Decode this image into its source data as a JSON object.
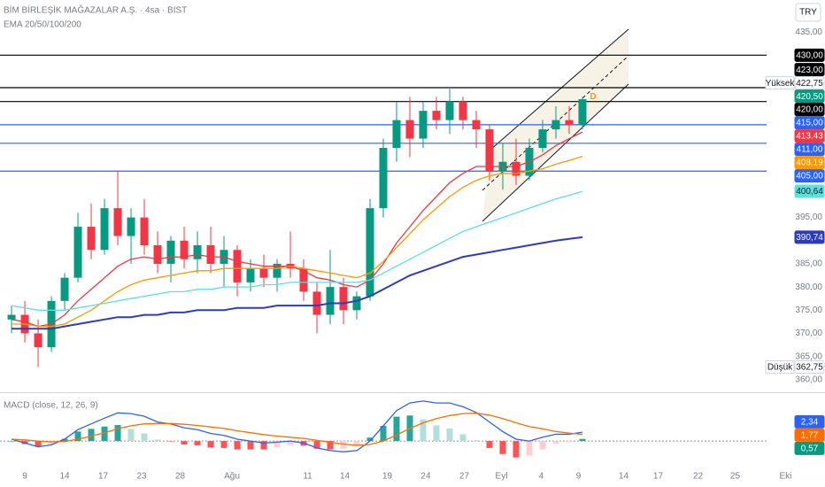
{
  "header": {
    "title": "BİM BİRLEŞİK MAĞAZALAR A.Ş. · 4sa · BIST",
    "indicators": "EMA 20/50/100/200",
    "currency": "TRY"
  },
  "chart_data": [
    {
      "type": "candlestick",
      "xlim": [
        -0.87,
        61.27
      ],
      "ylim": [
        357.3,
        441.9
      ],
      "yticks": [
        {
          "value": 435,
          "label": "435,00"
        },
        {
          "value": 395,
          "label": "395,00"
        },
        {
          "value": 385,
          "label": "385,00"
        },
        {
          "value": 380,
          "label": "380,00"
        },
        {
          "value": 375,
          "label": "375,00"
        },
        {
          "value": 370,
          "label": "370,00"
        },
        {
          "value": 365,
          "label": "365,00"
        },
        {
          "value": 360,
          "label": "360,00"
        }
      ],
      "open": [
        373,
        374,
        370,
        367,
        377,
        382,
        393,
        388,
        397,
        391,
        395,
        389,
        385,
        390,
        386,
        389,
        385,
        388,
        381,
        384,
        382,
        385,
        384,
        379,
        374,
        380,
        375,
        378,
        397,
        410,
        416,
        412,
        418,
        416,
        420,
        416,
        414,
        405,
        407,
        404,
        410,
        414,
        416,
        415
      ],
      "high": [
        376,
        377,
        373,
        378,
        383,
        396,
        398,
        399,
        405,
        397,
        399,
        392,
        391,
        393,
        392,
        393,
        391,
        389,
        386,
        387,
        386,
        392,
        386,
        381,
        388,
        382,
        379,
        399,
        412,
        420,
        421,
        420,
        421,
        422.75,
        421,
        418,
        415,
        411,
        412,
        412,
        416,
        419,
        419,
        421
      ],
      "low": [
        370,
        368,
        362.75,
        366,
        375,
        381,
        386,
        387,
        389,
        385,
        387,
        383,
        381,
        384,
        383,
        383,
        380,
        378,
        379,
        380,
        379,
        382,
        377,
        370,
        372,
        372,
        373,
        377,
        395,
        407,
        408,
        410,
        414,
        413,
        414,
        410,
        403,
        401,
        402,
        403,
        409,
        412,
        413,
        414
      ],
      "close": [
        374,
        370,
        367,
        377,
        382,
        393,
        388,
        397,
        391,
        395,
        389,
        385,
        390,
        386,
        389,
        385,
        388,
        381,
        384,
        382,
        385,
        384,
        379,
        374,
        380,
        375,
        378,
        397,
        410,
        416,
        412,
        418,
        416,
        420,
        416,
        414,
        405,
        407,
        404,
        410,
        414,
        416,
        415,
        420.5
      ],
      "up_color": "#089981",
      "down_color": "#f23645",
      "series": [
        {
          "color": "#f23645",
          "values": [
            373,
            372.5,
            371.5,
            372,
            374,
            377,
            379.5,
            382,
            384.5,
            386,
            386.5,
            386,
            386.5,
            386.5,
            387,
            386.5,
            386.5,
            385.5,
            385,
            384.5,
            384.5,
            384.5,
            383.5,
            382,
            381.5,
            380.5,
            380,
            381.5,
            385,
            389.5,
            393,
            396.5,
            399.5,
            402.5,
            404.5,
            406,
            406,
            406,
            406,
            407,
            408.5,
            410.5,
            412,
            413.43
          ]
        },
        {
          "color": "#ff9800",
          "values": [
            372,
            372,
            371.5,
            371.5,
            372,
            373.5,
            375,
            377,
            379,
            380.5,
            381.5,
            382,
            382.5,
            383,
            383.5,
            383.5,
            384,
            384,
            384,
            384,
            384,
            384.5,
            384,
            383.5,
            383,
            382.5,
            382,
            383,
            385.5,
            388.5,
            391.5,
            394.5,
            397,
            399.5,
            401.5,
            403,
            404,
            404.5,
            404.5,
            405,
            405.5,
            406.5,
            407.3,
            408.19
          ]
        },
        {
          "color": "#5ce1dc",
          "values": [
            376,
            375.5,
            375,
            375,
            375,
            375.5,
            376,
            376.5,
            377,
            377.5,
            378,
            378.5,
            379,
            379,
            379.5,
            379.5,
            380,
            380,
            380,
            380.5,
            380.5,
            381,
            381,
            381,
            381,
            381,
            381,
            381.5,
            383,
            384.5,
            386,
            387.5,
            389,
            390.5,
            392,
            393,
            394,
            395,
            396,
            397,
            398,
            399,
            399.8,
            400.64
          ]
        },
        {
          "color": "#2b3cc4",
          "values": [
            371,
            371,
            371,
            371,
            371.5,
            372,
            372.5,
            373,
            373.5,
            373.5,
            374,
            374,
            374.5,
            374.5,
            375,
            375,
            375,
            375.5,
            375.5,
            375.5,
            376,
            376,
            376,
            376,
            376.5,
            376.5,
            377,
            378,
            379.5,
            381,
            382.5,
            383.5,
            384.5,
            385.5,
            386.5,
            387,
            387.5,
            388,
            388.5,
            389,
            389.5,
            390,
            390.4,
            390.74
          ]
        }
      ],
      "marker": {
        "label": "D",
        "color": "#ff9800"
      },
      "levels": [
        {
          "value": 430,
          "label": "430,00",
          "color": "#000000",
          "text_color": "#ffffff",
          "line": true
        },
        {
          "value": 423,
          "label": "423,00",
          "color": "#000000",
          "text_color": "#ffffff",
          "line": true
        },
        {
          "value": 422.75,
          "label": "422,75",
          "tag": "Yüksek",
          "color": "#ffffff",
          "text_color": "#131722"
        },
        {
          "value": 420.5,
          "label": "420,50",
          "color": "#089981",
          "text_color": "#ffffff"
        },
        {
          "value": 420,
          "label": "420,00",
          "color": "#000000",
          "text_color": "#ffffff",
          "line": true
        },
        {
          "value": 415,
          "label": "415,00",
          "color": "#2962ff",
          "text_color": "#ffffff",
          "line": true
        },
        {
          "value": 413.43,
          "label": "413,43",
          "color": "#f23645",
          "text_color": "#ffffff"
        },
        {
          "value": 411,
          "label": "411,00",
          "color": "#2962ff",
          "text_color": "#ffffff",
          "line": true
        },
        {
          "value": 408.19,
          "label": "408,19",
          "color": "#ff9800",
          "text_color": "#ffffff"
        },
        {
          "value": 405,
          "label": "405,00",
          "color": "#2962ff",
          "text_color": "#ffffff",
          "line": true
        },
        {
          "value": 400.64,
          "label": "400,64",
          "color": "#5ce1dc",
          "text_color": "#131722"
        },
        {
          "value": 390.74,
          "label": "390,74",
          "color": "#2b3cc4",
          "text_color": "#ffffff"
        },
        {
          "value": 362.75,
          "label": "362,75",
          "tag": "Düşük",
          "color": "#ffffff",
          "text_color": "#131722"
        }
      ]
    },
    {
      "type": "macd",
      "title": "MACD (close, 12, 26, 9)",
      "xlim": [
        -0.87,
        61.27
      ],
      "ylim": [
        -7.4,
        12.8
      ],
      "xticks": [
        {
          "value": 1,
          "label": "9"
        },
        {
          "value": 4,
          "label": "14"
        },
        {
          "value": 6.9,
          "label": "17"
        },
        {
          "value": 9.8,
          "label": "23"
        },
        {
          "value": 12.7,
          "label": "28"
        },
        {
          "value": 16.6,
          "label": "Ağu"
        },
        {
          "value": 22.3,
          "label": "11"
        },
        {
          "value": 25.1,
          "label": "14"
        },
        {
          "value": 28.3,
          "label": "19"
        },
        {
          "value": 31.2,
          "label": "24"
        },
        {
          "value": 34.1,
          "label": "27"
        },
        {
          "value": 36.9,
          "label": "Eyl"
        },
        {
          "value": 39.9,
          "label": "4"
        },
        {
          "value": 42.7,
          "label": "9"
        },
        {
          "value": 46.1,
          "label": "14"
        },
        {
          "value": 48.7,
          "label": "17"
        },
        {
          "value": 51.7,
          "label": "22"
        },
        {
          "value": 54.5,
          "label": "25"
        },
        {
          "value": 58.3,
          "label": "Eki"
        }
      ],
      "series": [
        {
          "color": "#2962ff",
          "values": [
            0.5,
            -0.5,
            -1.5,
            -1,
            0.5,
            3,
            4.5,
            6,
            7.4,
            7.2,
            6.5,
            5,
            4.5,
            3.5,
            3,
            2,
            1.5,
            0.5,
            0,
            -0.5,
            -0.3,
            0,
            -0.5,
            -1.8,
            -2.5,
            -2.8,
            -2.5,
            0,
            4,
            8,
            10,
            10.5,
            10,
            10,
            9,
            7.5,
            5,
            2.5,
            0.5,
            0,
            1,
            1.8,
            1.8,
            2.34
          ]
        },
        {
          "color": "#ff6d00",
          "values": [
            0.5,
            0.3,
            0,
            -0.2,
            -0.1,
            0.5,
            1.3,
            2.2,
            3.2,
            4,
            4.5,
            4.6,
            4.6,
            4.4,
            4.1,
            3.7,
            3.3,
            2.7,
            2.2,
            1.7,
            1.3,
            1,
            0.7,
            0.2,
            -0.3,
            -0.8,
            -1.1,
            -0.9,
            0,
            1.6,
            3.3,
            4.8,
            5.9,
            6.7,
            7.2,
            7.3,
            6.8,
            5.9,
            4.8,
            3.8,
            3.2,
            2.5,
            2.1,
            1.77
          ]
        }
      ],
      "histogram": {
        "values": [
          0,
          -0.8,
          -1.5,
          -0.8,
          0.6,
          2.5,
          3.2,
          3.8,
          4.2,
          3.2,
          2,
          0.4,
          -0.1,
          -0.9,
          -1.1,
          -1.7,
          -1.8,
          -2.2,
          -2.2,
          -2.2,
          -1.6,
          -1,
          -1.2,
          -2,
          -2.2,
          -2,
          -1.4,
          0.9,
          4,
          6.4,
          6.7,
          5.7,
          4.1,
          3.3,
          1.8,
          0.2,
          -1.8,
          -3.4,
          -4.3,
          -3.8,
          -2.2,
          -0.7,
          -0.3,
          0.57
        ],
        "colors": {
          "up_rising": "#26a69a",
          "up_falling": "#b2dfdb",
          "down_falling": "#ff5252",
          "down_rising": "#ffcdd2"
        }
      },
      "zero_line": true,
      "levels": [
        {
          "value": 2.34,
          "label": "2,34",
          "color": "#2962ff",
          "text_color": "#ffffff"
        },
        {
          "value": 1.77,
          "label": "1,77",
          "color": "#ff6d00",
          "text_color": "#ffffff"
        },
        {
          "value": 0.57,
          "label": "0,57",
          "color": "#089981",
          "text_color": "#ffffff"
        }
      ]
    }
  ]
}
